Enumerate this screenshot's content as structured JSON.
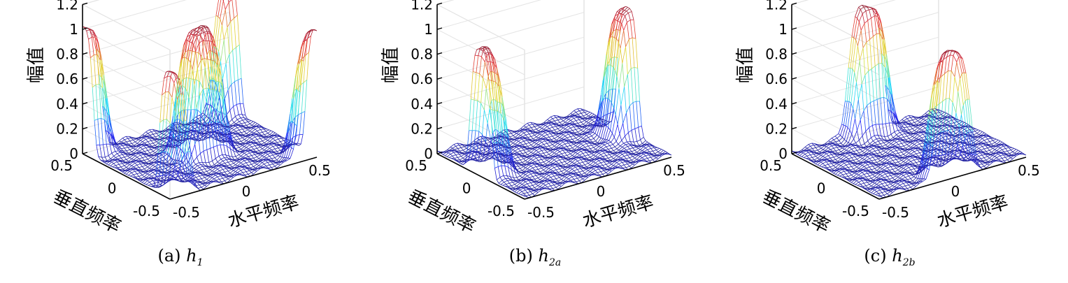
{
  "chart_data": [
    {
      "type": "surface",
      "zlabel": "幅值",
      "ylabel": "垂直频率",
      "xlabel": "水平频率",
      "zticks": [
        "0",
        "0.2",
        "0.4",
        "0.6",
        "0.8",
        "1",
        "1.2"
      ],
      "yticks": [
        "0.5",
        "0",
        "-0.5"
      ],
      "xticks": [
        "-0.5",
        "0",
        "0.5"
      ],
      "zlim": [
        0,
        1.2
      ],
      "xlim": [
        -0.5,
        0.5
      ],
      "ylim": [
        -0.5,
        0.5
      ],
      "caption": {
        "prefix": "(a) ",
        "var": "h",
        "sub": "1"
      },
      "peaks": [
        {
          "u": 0.0,
          "v": 0.0,
          "height": 1.0
        },
        {
          "u": 0.5,
          "v": 0.5,
          "height": 1.0
        },
        {
          "u": -0.5,
          "v": -0.5,
          "height": 1.0
        },
        {
          "u": 0.5,
          "v": -0.5,
          "height": 1.0
        },
        {
          "u": -0.5,
          "v": 0.5,
          "height": 1.0
        }
      ]
    },
    {
      "type": "surface",
      "zlabel": "幅值",
      "ylabel": "垂直频率",
      "xlabel": "水平频率",
      "zticks": [
        "0",
        "0.2",
        "0.4",
        "0.6",
        "0.8",
        "1",
        "1.2"
      ],
      "yticks": [
        "0.5",
        "0",
        "-0.5"
      ],
      "xticks": [
        "-0.5",
        "0",
        "0.5"
      ],
      "zlim": [
        0,
        1.2
      ],
      "xlim": [
        -0.5,
        0.5
      ],
      "ylim": [
        -0.5,
        0.5
      ],
      "caption": {
        "prefix": "(b) ",
        "var": "h",
        "sub": "2a"
      },
      "peaks": [
        {
          "u": 0.5,
          "v": 0.0,
          "height": 1.0
        },
        {
          "u": -0.5,
          "v": 0.0,
          "height": 1.0
        }
      ]
    },
    {
      "type": "surface",
      "zlabel": "幅值",
      "ylabel": "垂直频率",
      "xlabel": "水平频率",
      "zticks": [
        "0",
        "0.2",
        "0.4",
        "0.6",
        "0.8",
        "1",
        "1.2"
      ],
      "yticks": [
        "0.5",
        "0",
        "-0.5"
      ],
      "xticks": [
        "-0.5",
        "0",
        "0.5"
      ],
      "zlim": [
        0,
        1.2
      ],
      "xlim": [
        -0.5,
        0.5
      ],
      "ylim": [
        -0.5,
        0.5
      ],
      "caption": {
        "prefix": "(c) ",
        "var": "h",
        "sub": "2b"
      },
      "peaks": [
        {
          "u": 0.0,
          "v": 0.5,
          "height": 1.0
        },
        {
          "u": 0.0,
          "v": -0.5,
          "height": 1.0
        }
      ]
    }
  ]
}
